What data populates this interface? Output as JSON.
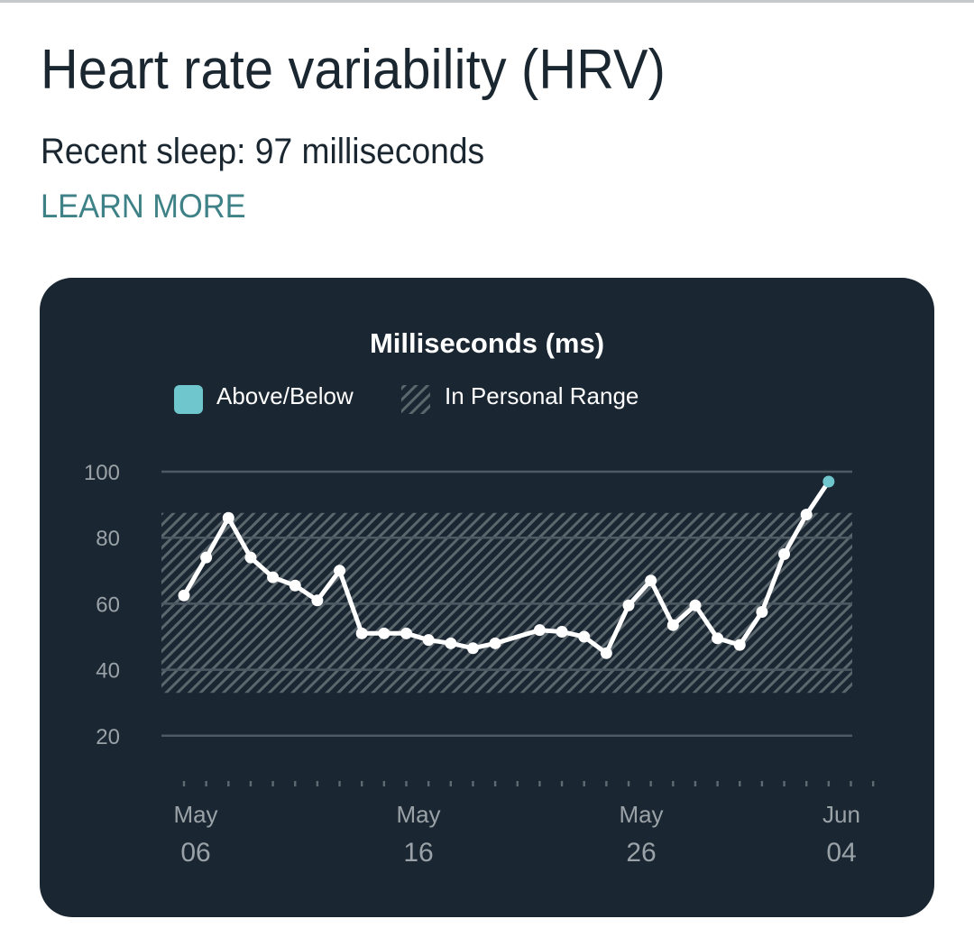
{
  "header": {
    "title": "Heart rate variability (HRV)",
    "recent_sleep": "Recent sleep: 97 milliseconds",
    "learn_more": "LEARN MORE"
  },
  "colors": {
    "card_bg": "#1a2631",
    "accent": "#6fc6cc",
    "link": "#3e8187",
    "line": "#ffffff",
    "grid": "#4e5a63",
    "hatch": "#5b666d",
    "axis_text": "#9aa2a8"
  },
  "chart_data": {
    "type": "line",
    "title": "Milliseconds (ms)",
    "legend": [
      {
        "label": "Above/Below",
        "swatch": "solid",
        "color": "#6fc6cc"
      },
      {
        "label": "In Personal Range",
        "swatch": "hatched"
      }
    ],
    "legend_position": "top",
    "ylabel": "Milliseconds (ms)",
    "xlabel": "",
    "ylim": [
      20,
      100
    ],
    "yticks": [
      100,
      80,
      60,
      40,
      20
    ],
    "grid": true,
    "personal_range": [
      33,
      87.5
    ],
    "x_tick_labels": [
      {
        "month": "May",
        "day": "06"
      },
      {
        "month": "May",
        "day": "16"
      },
      {
        "month": "May",
        "day": "26"
      },
      {
        "month": "Jun",
        "day": "04"
      }
    ],
    "x_day_ticks": 32,
    "series": [
      {
        "name": "HRV",
        "points": [
          {
            "day": 0,
            "date": "May 06",
            "value": 62.5
          },
          {
            "day": 1,
            "date": "May 07",
            "value": 74
          },
          {
            "day": 2,
            "date": "May 08",
            "value": 86
          },
          {
            "day": 3,
            "date": "May 09",
            "value": 74
          },
          {
            "day": 4,
            "date": "May 10",
            "value": 68
          },
          {
            "day": 5,
            "date": "May 11",
            "value": 65.5
          },
          {
            "day": 6,
            "date": "May 12",
            "value": 61
          },
          {
            "day": 7,
            "date": "May 13",
            "value": 70
          },
          {
            "day": 8,
            "date": "May 14",
            "value": 51
          },
          {
            "day": 9,
            "date": "May 15",
            "value": 51
          },
          {
            "day": 10,
            "date": "May 16",
            "value": 51
          },
          {
            "day": 11,
            "date": "May 17",
            "value": 49
          },
          {
            "day": 12,
            "date": "May 18",
            "value": 48
          },
          {
            "day": 13,
            "date": "May 19",
            "value": 46.5
          },
          {
            "day": 14,
            "date": "May 20",
            "value": 48
          },
          {
            "day": 16,
            "date": "May 22",
            "value": 52
          },
          {
            "day": 17,
            "date": "May 23",
            "value": 51.5
          },
          {
            "day": 18,
            "date": "May 24",
            "value": 50
          },
          {
            "day": 19,
            "date": "May 25",
            "value": 45
          },
          {
            "day": 20,
            "date": "May 26",
            "value": 59.5
          },
          {
            "day": 21,
            "date": "May 27",
            "value": 67
          },
          {
            "day": 22,
            "date": "May 28",
            "value": 53.5
          },
          {
            "day": 23,
            "date": "May 29",
            "value": 59.5
          },
          {
            "day": 24,
            "date": "May 30",
            "value": 49.5
          },
          {
            "day": 25,
            "date": "May 31",
            "value": 47.5
          },
          {
            "day": 26,
            "date": "Jun 01",
            "value": 57.5
          },
          {
            "day": 27,
            "date": "Jun 02",
            "value": 75
          },
          {
            "day": 28,
            "date": "Jun 03",
            "value": 87
          },
          {
            "day": 29,
            "date": "Jun 04",
            "value": 97,
            "highlight": "above"
          }
        ]
      }
    ]
  }
}
